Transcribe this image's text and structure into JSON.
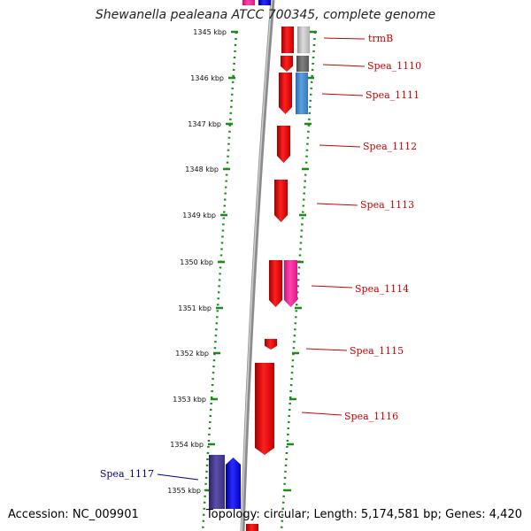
{
  "title": "Shewanella pealeana ATCC 700345, complete genome",
  "footer": {
    "accession": "Accession: NC_009901",
    "summary": "Topology: circular; Length: 5,174,581 bp; Genes: 4,420"
  },
  "ruler": {
    "labels": [
      "1345 kbp",
      "1346 kbp",
      "1347 kbp",
      "1348 kbp",
      "1349 kbp",
      "1350 kbp",
      "1351 kbp",
      "1352 kbp",
      "1353 kbp",
      "1354 kbp",
      "1355 kbp"
    ]
  },
  "genes": [
    {
      "name": "trmB",
      "color": "#cc0000"
    },
    {
      "name": "Spea_1110",
      "color": "#cc0000"
    },
    {
      "name": "Spea_1111",
      "color": "#cc0000"
    },
    {
      "name": "Spea_1112",
      "color": "#cc0000"
    },
    {
      "name": "Spea_1113",
      "color": "#cc0000"
    },
    {
      "name": "Spea_1114",
      "color": "#cc0000"
    },
    {
      "name": "Spea_1115",
      "color": "#cc0000"
    },
    {
      "name": "Spea_1116",
      "color": "#cc0000"
    },
    {
      "name": "Spea_1117",
      "color": "#00008b"
    }
  ],
  "colors": {
    "forward_gene": "#ff1a1a",
    "reverse_gene": "#1a1aff",
    "magenta_feature": "#ff33aa",
    "purple_feature": "#4a3d8f",
    "grey_feature": "#bdbdbd",
    "dark_grey_feature": "#707070",
    "steel_blue_feature": "#4a8fd0",
    "backbone": "#8c8c8c",
    "dotted_guides": "#1a8a1a"
  }
}
